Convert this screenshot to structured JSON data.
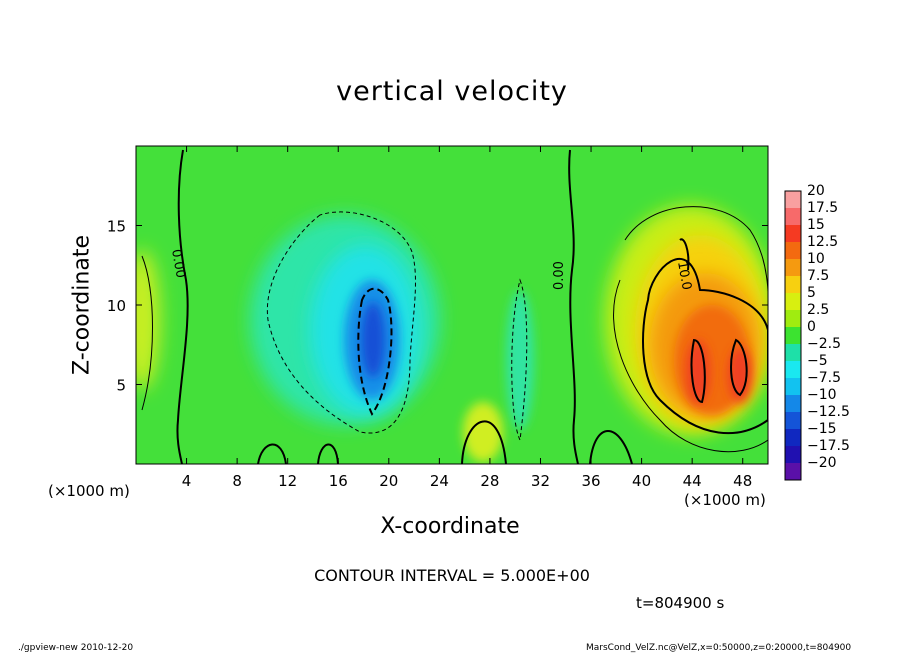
{
  "chart_data": {
    "type": "heatmap",
    "title": "vertical velocity",
    "xlabel": "X-coordinate",
    "ylabel": "Z-coordinate",
    "x_unit_label": "(×1000 m)",
    "xlim": [
      0,
      50
    ],
    "ylim": [
      0,
      20
    ],
    "x_ticks": [
      4,
      8,
      12,
      16,
      20,
      24,
      28,
      32,
      36,
      40,
      44,
      48
    ],
    "y_ticks": [
      5,
      10,
      15
    ],
    "colorbar": {
      "labels": [
        "20",
        "17.5",
        "15",
        "12.5",
        "10",
        "7.5",
        "5",
        "2.5",
        "0",
        "−2.5",
        "−5",
        "−7.5",
        "−10",
        "−12.5",
        "−15",
        "−17.5",
        "−20"
      ],
      "colors": [
        "#f9a0a0",
        "#f76a6a",
        "#f53a22",
        "#f36a10",
        "#f59a10",
        "#f7d010",
        "#d8ef10",
        "#a0ec10",
        "#3ce330",
        "#1ee0a8",
        "#1ae8f0",
        "#12c2f0",
        "#1488e8",
        "#1454d8",
        "#1028c0",
        "#2010b0",
        "#5a10a8"
      ]
    },
    "contour_labels": [
      "0.00",
      "0.00",
      "10.0"
    ],
    "annotations": [
      "CONTOUR INTERVAL = 5.000E+00",
      "t=804900 s"
    ],
    "features": [
      {
        "kind": "updraft",
        "x": 45.5,
        "z": 6.5,
        "w_max": 15
      },
      {
        "kind": "downdraft",
        "x": 18.5,
        "z": 8,
        "w_min": -12.5
      },
      {
        "kind": "updraft",
        "x": 27.5,
        "z": 2,
        "w_max": 7.5
      }
    ]
  },
  "footer": {
    "left": "./gpview-new   2010-12-20",
    "right": "MarsCond_VelZ.nc@VelZ,x=0:50000,z=0:20000,t=804900"
  }
}
